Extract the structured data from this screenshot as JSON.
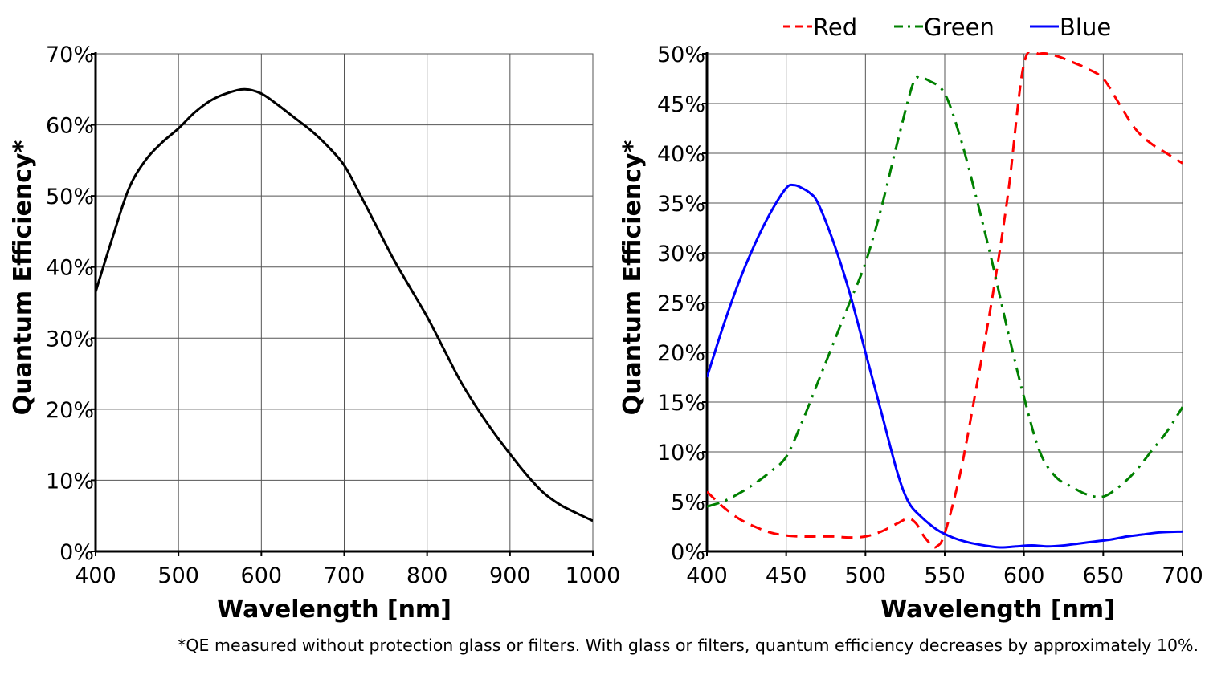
{
  "chart_data": [
    {
      "type": "line",
      "title": "",
      "xlabel": "Wavelength [nm]",
      "ylabel": "Quantum Efficiency*",
      "xlim": [
        400,
        1000
      ],
      "ylim": [
        0,
        70
      ],
      "xticks": [
        400,
        500,
        600,
        700,
        800,
        900,
        1000
      ],
      "yticks": [
        0,
        10,
        20,
        30,
        40,
        50,
        60,
        70
      ],
      "ytick_format": "percent",
      "grid": true,
      "legend": "none",
      "series": [
        {
          "name": "",
          "color": "#000000",
          "dash": "solid",
          "x": [
            400,
            420,
            440,
            460,
            480,
            500,
            520,
            540,
            560,
            580,
            600,
            620,
            640,
            660,
            680,
            700,
            720,
            740,
            760,
            780,
            800,
            820,
            840,
            860,
            880,
            900,
            920,
            940,
            960,
            980,
            1000
          ],
          "values": [
            36.5,
            44,
            51,
            55,
            57.5,
            59.5,
            61.8,
            63.5,
            64.5,
            65,
            64.4,
            62.8,
            61,
            59.2,
            57,
            54.3,
            50,
            45.5,
            41,
            37,
            33,
            28.5,
            24,
            20.2,
            16.8,
            13.7,
            10.8,
            8.3,
            6.6,
            5.4,
            4.3
          ]
        }
      ]
    },
    {
      "type": "line",
      "title": "",
      "xlabel": "Wavelength [nm]",
      "ylabel": "Quantum Efficiency*",
      "xlim": [
        400,
        700
      ],
      "ylim": [
        0,
        50
      ],
      "xticks": [
        400,
        450,
        500,
        550,
        600,
        650,
        700
      ],
      "yticks": [
        0,
        5,
        10,
        15,
        20,
        25,
        30,
        35,
        40,
        45,
        50
      ],
      "ytick_format": "percent",
      "grid": true,
      "legend": "top",
      "series": [
        {
          "name": "Red",
          "color": "#ff0000",
          "dash": "dashed",
          "x": [
            400,
            410,
            420,
            430,
            440,
            450,
            460,
            470,
            480,
            490,
            500,
            510,
            520,
            527,
            532,
            537,
            542,
            545,
            550,
            560,
            570,
            580,
            590,
            600,
            610,
            620,
            630,
            640,
            650,
            660,
            670,
            680,
            690,
            700
          ],
          "values": [
            6,
            4.5,
            3.3,
            2.5,
            1.9,
            1.6,
            1.5,
            1.5,
            1.5,
            1.4,
            1.5,
            2,
            2.8,
            3.3,
            2.8,
            1.5,
            0.6,
            0.5,
            1.8,
            8,
            16.5,
            25.5,
            36,
            49,
            50,
            49.8,
            49.2,
            48.5,
            47.5,
            45,
            42.5,
            41,
            40,
            39
          ]
        },
        {
          "name": "Green",
          "color": "#008000",
          "dash": "dashdot",
          "x": [
            400,
            410,
            420,
            430,
            440,
            450,
            460,
            470,
            480,
            490,
            500,
            510,
            520,
            530,
            535,
            540,
            550,
            560,
            570,
            580,
            590,
            600,
            610,
            620,
            630,
            640,
            650,
            660,
            670,
            680,
            690,
            700
          ],
          "values": [
            4.5,
            5,
            5.8,
            6.8,
            8,
            9.5,
            13,
            17,
            21,
            25,
            29,
            34.5,
            41,
            47,
            47.5,
            47.3,
            46,
            41.5,
            35.5,
            29,
            22,
            15.5,
            10,
            7.5,
            6.5,
            5.7,
            5.5,
            6.5,
            8,
            10,
            12,
            14.5
          ]
        },
        {
          "name": "Blue",
          "color": "#0000ff",
          "dash": "solid",
          "x": [
            400,
            410,
            420,
            430,
            440,
            450,
            455,
            460,
            465,
            470,
            480,
            490,
            500,
            510,
            520,
            527,
            535,
            545,
            555,
            565,
            575,
            585,
            595,
            605,
            615,
            625,
            635,
            645,
            655,
            665,
            675,
            685,
            700
          ],
          "values": [
            17.5,
            22.5,
            27,
            30.8,
            34,
            36.5,
            36.8,
            36.5,
            36,
            35,
            31,
            26,
            20,
            14,
            8,
            5,
            3.5,
            2.2,
            1.4,
            0.9,
            0.6,
            0.4,
            0.5,
            0.6,
            0.5,
            0.6,
            0.8,
            1,
            1.2,
            1.5,
            1.7,
            1.9,
            2
          ]
        }
      ]
    }
  ],
  "footnote": "*QE measured without protection glass or filters. With glass or filters, quantum efficiency decreases by approximately 10%."
}
